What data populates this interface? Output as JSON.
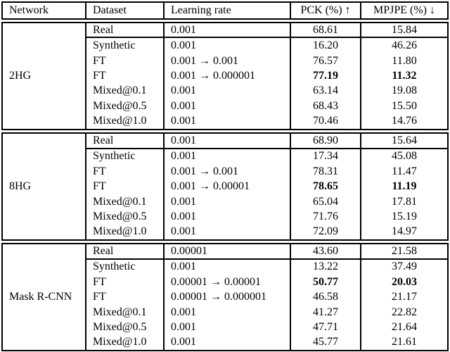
{
  "header": {
    "network": "Network",
    "dataset": "Dataset",
    "learning_rate": "Learning rate",
    "pck": "PCK (%) ↑",
    "mpjpe": "MPJPE (%) ↓"
  },
  "blocks": [
    {
      "network": "2HG",
      "rows": [
        {
          "dataset": "Real",
          "lr": "0.001",
          "pck": "68.61",
          "mpjpe": "15.84",
          "bold": false
        },
        {
          "dataset": "Synthetic",
          "lr": "0.001",
          "pck": "16.20",
          "mpjpe": "46.26",
          "bold": false
        },
        {
          "dataset": "FT",
          "lr": "0.001 → 0.001",
          "pck": "76.57",
          "mpjpe": "11.80",
          "bold": false
        },
        {
          "dataset": "FT",
          "lr": "0.001 → 0.000001",
          "pck": "77.19",
          "mpjpe": "11.32",
          "bold": true
        },
        {
          "dataset": "Mixed@0.1",
          "lr": "0.001",
          "pck": "63.14",
          "mpjpe": "19.08",
          "bold": false
        },
        {
          "dataset": "Mixed@0.5",
          "lr": "0.001",
          "pck": "68.43",
          "mpjpe": "15.50",
          "bold": false
        },
        {
          "dataset": "Mixed@1.0",
          "lr": "0.001",
          "pck": "70.46",
          "mpjpe": "14.76",
          "bold": false
        }
      ]
    },
    {
      "network": "8HG",
      "rows": [
        {
          "dataset": "Real",
          "lr": "0.001",
          "pck": "68.90",
          "mpjpe": "15.64",
          "bold": false
        },
        {
          "dataset": "Synthetic",
          "lr": "0.001",
          "pck": "17.34",
          "mpjpe": "45.08",
          "bold": false
        },
        {
          "dataset": "FT",
          "lr": "0.001 → 0.001",
          "pck": "78.31",
          "mpjpe": "11.47",
          "bold": false
        },
        {
          "dataset": "FT",
          "lr": "0.001 → 0.00001",
          "pck": "78.65",
          "mpjpe": "11.19",
          "bold": true
        },
        {
          "dataset": "Mixed@0.1",
          "lr": "0.001",
          "pck": "65.04",
          "mpjpe": "17.81",
          "bold": false
        },
        {
          "dataset": "Mixed@0.5",
          "lr": "0.001",
          "pck": "71.76",
          "mpjpe": "15.19",
          "bold": false
        },
        {
          "dataset": "Mixed@1.0",
          "lr": "0.001",
          "pck": "72.09",
          "mpjpe": "14.97",
          "bold": false
        }
      ]
    },
    {
      "network": "Mask R-CNN",
      "rows": [
        {
          "dataset": "Real",
          "lr": "0.00001",
          "pck": "43.60",
          "mpjpe": "21.58",
          "bold": false
        },
        {
          "dataset": "Synthetic",
          "lr": "0.001",
          "pck": "13.22",
          "mpjpe": "37.49",
          "bold": false
        },
        {
          "dataset": "FT",
          "lr": "0.00001 → 0.00001",
          "pck": "50.77",
          "mpjpe": "20.03",
          "bold": true
        },
        {
          "dataset": "FT",
          "lr": "0.00001 → 0.000001",
          "pck": "46.58",
          "mpjpe": "21.17",
          "bold": false
        },
        {
          "dataset": "Mixed@0.1",
          "lr": "0.001",
          "pck": "41.27",
          "mpjpe": "22.82",
          "bold": false
        },
        {
          "dataset": "Mixed@0.5",
          "lr": "0.001",
          "pck": "47.71",
          "mpjpe": "21.64",
          "bold": false
        },
        {
          "dataset": "Mixed@1.0",
          "lr": "0.001",
          "pck": "45.77",
          "mpjpe": "21.61",
          "bold": false
        }
      ]
    }
  ]
}
